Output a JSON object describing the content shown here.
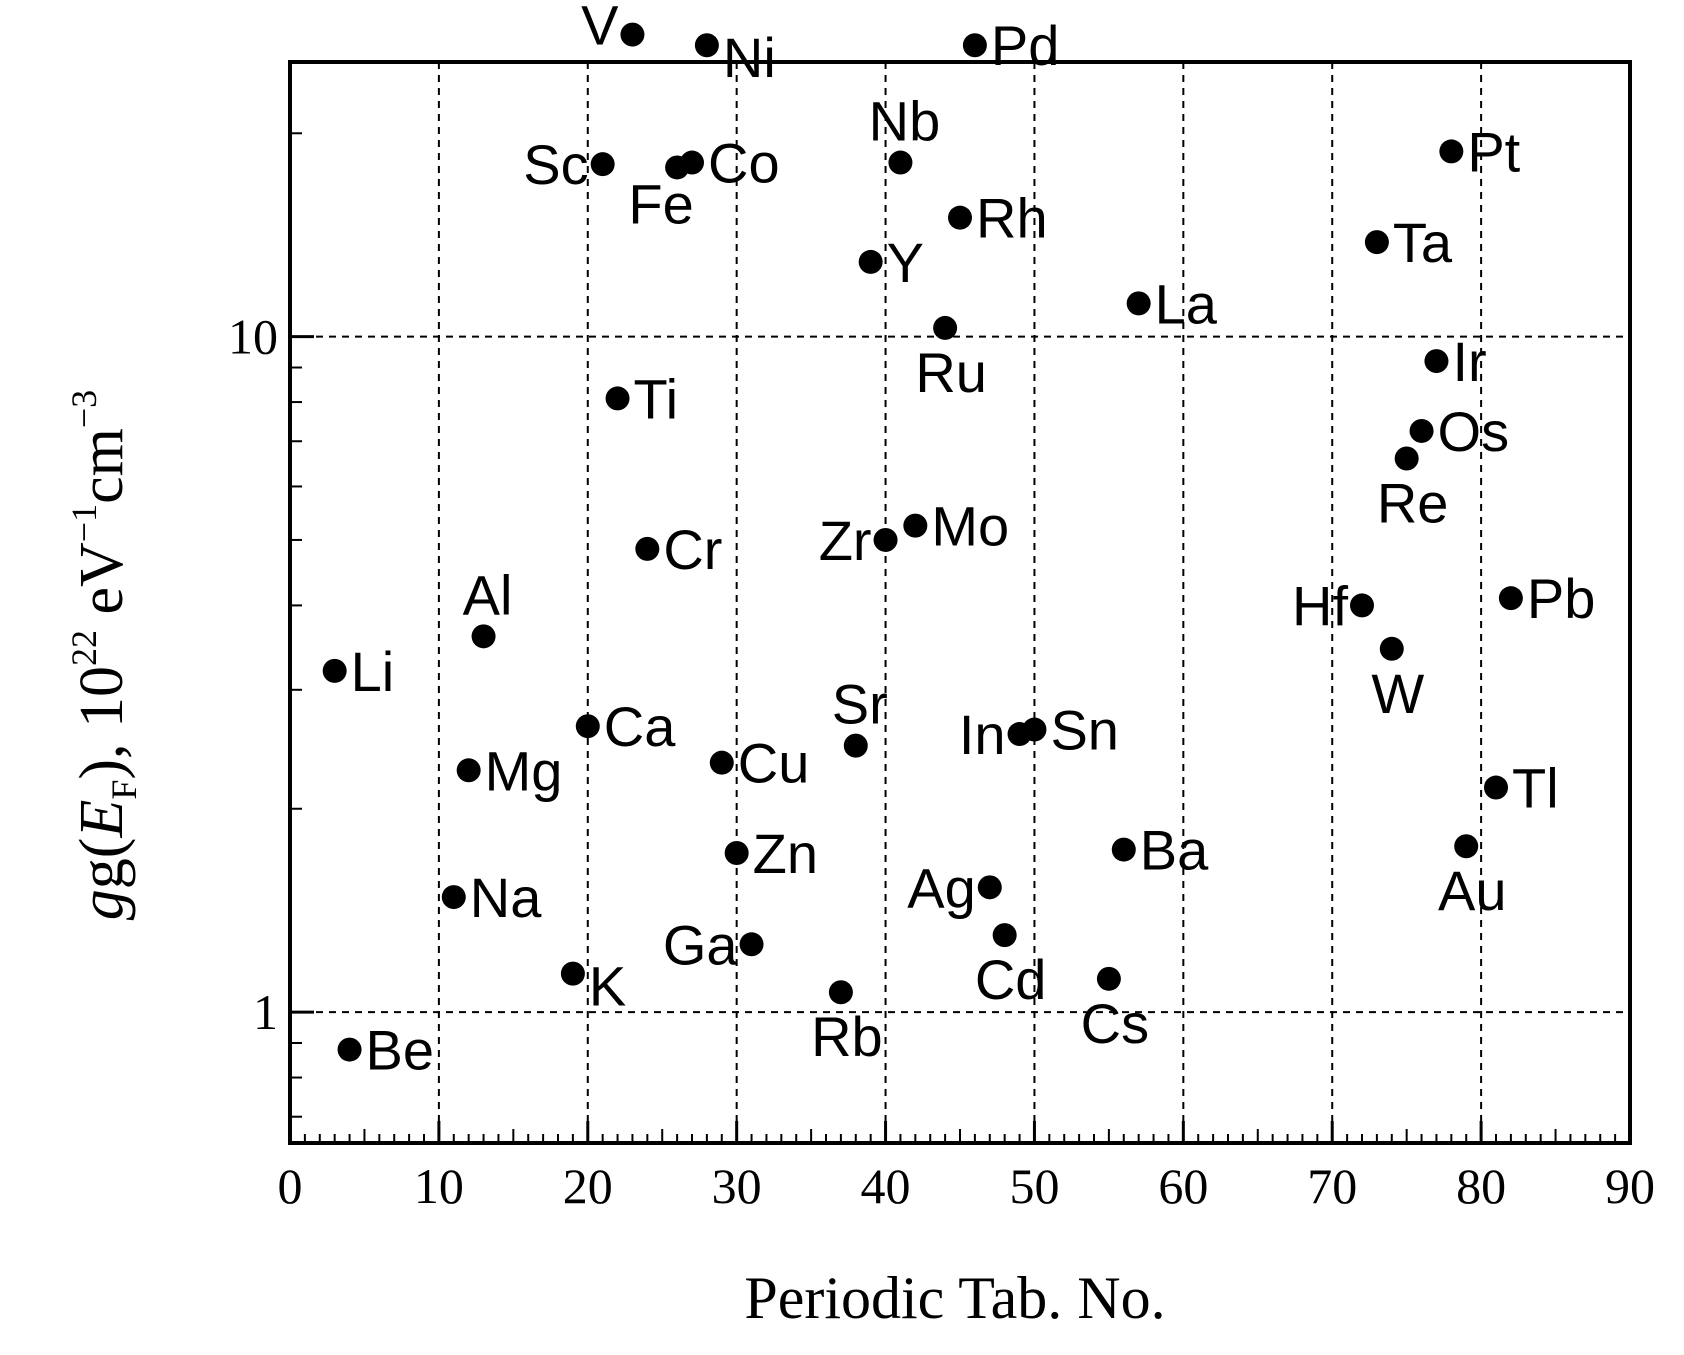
{
  "chart_data": {
    "type": "scatter",
    "xlabel": "Periodic Tab. No.",
    "ylabel": {
      "main": "g(",
      "var": "E",
      "sub": "F",
      "rest": "), 10",
      "exp1": "22",
      "unit1": " eV",
      "exp2": "−1",
      "unit2": "cm",
      "exp3": "−3"
    },
    "xlim": [
      0,
      90
    ],
    "ylim": [
      0.64,
      25.5
    ],
    "yscale": "log",
    "x_ticks": [
      0,
      10,
      20,
      30,
      40,
      50,
      60,
      70,
      80,
      90
    ],
    "y_ticks": [
      1,
      10
    ],
    "y_tick_labels": [
      "1",
      "10"
    ],
    "grid": true,
    "series_color": "#000000",
    "points": [
      {
        "label": "Li",
        "x": 3,
        "y": 3.2,
        "anchor": "right"
      },
      {
        "label": "Be",
        "x": 4,
        "y": 0.88,
        "anchor": "right"
      },
      {
        "label": "Na",
        "x": 11,
        "y": 1.48,
        "anchor": "right"
      },
      {
        "label": "Mg",
        "x": 12,
        "y": 2.28,
        "anchor": "right"
      },
      {
        "label": "Al",
        "x": 13,
        "y": 3.6,
        "anchor": "above"
      },
      {
        "label": "K",
        "x": 19,
        "y": 1.14,
        "anchor": "right-low"
      },
      {
        "label": "Ca",
        "x": 20,
        "y": 2.65,
        "anchor": "right"
      },
      {
        "label": "Sc",
        "x": 21,
        "y": 18.0,
        "anchor": "left"
      },
      {
        "label": "Ti",
        "x": 22,
        "y": 8.1,
        "anchor": "right"
      },
      {
        "label": "V",
        "x": 23,
        "y": 28.0,
        "anchor": "left-high"
      },
      {
        "label": "Cr",
        "x": 24,
        "y": 4.85,
        "anchor": "right"
      },
      {
        "label": "Fe",
        "x": 26,
        "y": 17.8,
        "anchor": "below-left"
      },
      {
        "label": "Co",
        "x": 27,
        "y": 18.1,
        "anchor": "right"
      },
      {
        "label": "Ni",
        "x": 28,
        "y": 27.0,
        "anchor": "right-low"
      },
      {
        "label": "Cu",
        "x": 29,
        "y": 2.34,
        "anchor": "right"
      },
      {
        "label": "Zn",
        "x": 30,
        "y": 1.72,
        "anchor": "right"
      },
      {
        "label": "Ga",
        "x": 31,
        "y": 1.26,
        "anchor": "left"
      },
      {
        "label": "Rb",
        "x": 37,
        "y": 1.07,
        "anchor": "below"
      },
      {
        "label": "Sr",
        "x": 38,
        "y": 2.48,
        "anchor": "above"
      },
      {
        "label": "Y",
        "x": 39,
        "y": 12.9,
        "anchor": "right"
      },
      {
        "label": "Zr",
        "x": 40,
        "y": 5.0,
        "anchor": "left"
      },
      {
        "label": "Nb",
        "x": 41,
        "y": 18.1,
        "anchor": "above"
      },
      {
        "label": "Mo",
        "x": 42,
        "y": 5.25,
        "anchor": "right"
      },
      {
        "label": "Ru",
        "x": 44,
        "y": 10.3,
        "anchor": "below"
      },
      {
        "label": "Rh",
        "x": 45,
        "y": 15.0,
        "anchor": "right"
      },
      {
        "label": "Pd",
        "x": 46,
        "y": 27.0,
        "anchor": "right"
      },
      {
        "label": "Ag",
        "x": 47,
        "y": 1.53,
        "anchor": "left"
      },
      {
        "label": "Cd",
        "x": 48,
        "y": 1.3,
        "anchor": "below"
      },
      {
        "label": "In",
        "x": 49,
        "y": 2.58,
        "anchor": "left"
      },
      {
        "label": "Sn",
        "x": 50,
        "y": 2.62,
        "anchor": "right"
      },
      {
        "label": "Cs",
        "x": 55,
        "y": 1.12,
        "anchor": "below"
      },
      {
        "label": "Ba",
        "x": 56,
        "y": 1.74,
        "anchor": "right"
      },
      {
        "label": "La",
        "x": 57,
        "y": 11.2,
        "anchor": "right"
      },
      {
        "label": "Hf",
        "x": 72,
        "y": 4.0,
        "anchor": "left"
      },
      {
        "label": "Ta",
        "x": 73,
        "y": 13.8,
        "anchor": "right"
      },
      {
        "label": "W",
        "x": 74,
        "y": 3.45,
        "anchor": "below"
      },
      {
        "label": "Re",
        "x": 75,
        "y": 6.6,
        "anchor": "below"
      },
      {
        "label": "Os",
        "x": 76,
        "y": 7.25,
        "anchor": "right"
      },
      {
        "label": "Ir",
        "x": 77,
        "y": 9.2,
        "anchor": "right"
      },
      {
        "label": "Pt",
        "x": 78,
        "y": 18.8,
        "anchor": "right"
      },
      {
        "label": "Au",
        "x": 79,
        "y": 1.76,
        "anchor": "below"
      },
      {
        "label": "Tl",
        "x": 81,
        "y": 2.15,
        "anchor": "right"
      },
      {
        "label": "Pb",
        "x": 82,
        "y": 4.1,
        "anchor": "right"
      }
    ]
  }
}
